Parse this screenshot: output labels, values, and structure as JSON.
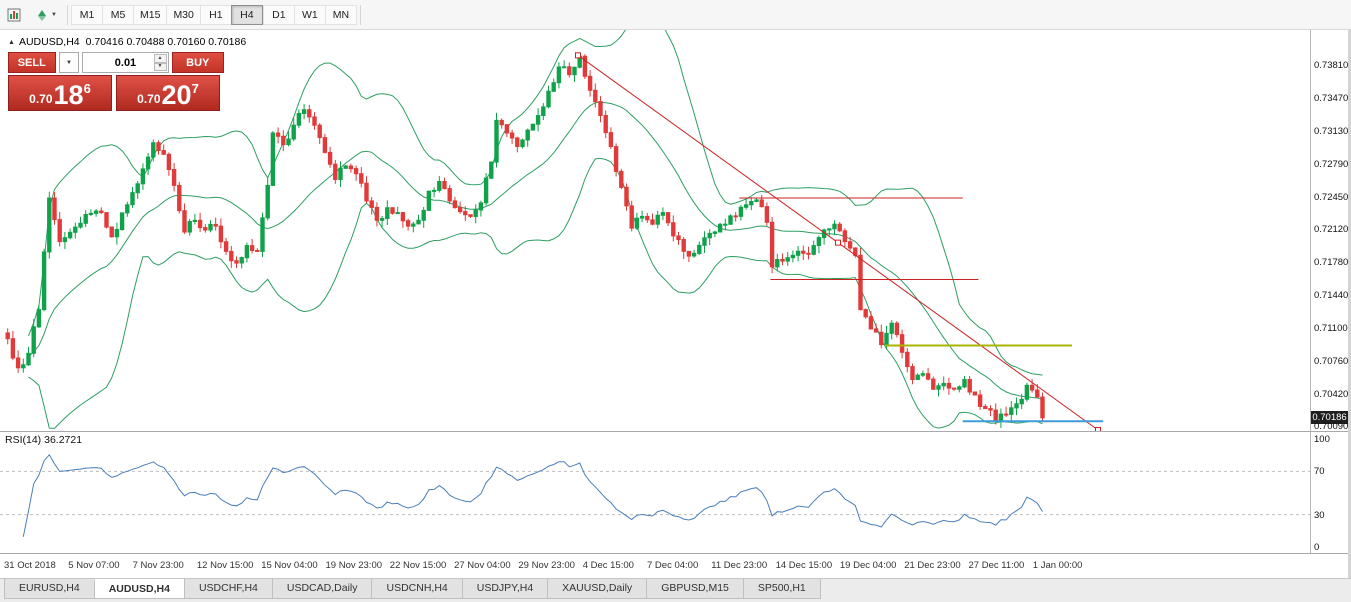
{
  "icons": {
    "panel_toggle": "▲",
    "caret_down": "▼",
    "spin_up": "▲",
    "spin_down": "▼"
  },
  "colors": {
    "candle_up": "#0fa24a",
    "candle_down": "#e03a3a",
    "bollinger": "#2f9e62",
    "rsi_line": "#4a7ebb",
    "rsi_level": "#bdbdbd",
    "trendline": "#cc2222",
    "hline_red": "#cc2222",
    "hline_olive": "#a8b400",
    "hline_blue": "#3f9bd8",
    "price_badge_bg": "#1f1f1f"
  },
  "toolbar": {
    "timeframes": [
      "M1",
      "M5",
      "M15",
      "M30",
      "H1",
      "H4",
      "D1",
      "W1",
      "MN"
    ],
    "selected_timeframe": "H4"
  },
  "chart": {
    "title_symbol": "AUDUSD,H4",
    "ohlc": "0.70416 0.70488 0.70160 0.70186",
    "trade_panel": {
      "sell_label": "SELL",
      "buy_label": "BUY",
      "lot": "0.01",
      "sell_price_prefix": "0.70",
      "sell_price_big": "18",
      "sell_price_sup": "6",
      "buy_price_prefix": "0.70",
      "buy_price_big": "20",
      "buy_price_sup": "7"
    },
    "price_axis": {
      "labels": [
        {
          "text": "0.73810",
          "value": 0.7381
        },
        {
          "text": "0.73470",
          "value": 0.7347
        },
        {
          "text": "0.73130",
          "value": 0.7313
        },
        {
          "text": "0.72790",
          "value": 0.7279
        },
        {
          "text": "0.72450",
          "value": 0.7245
        },
        {
          "text": "0.72120",
          "value": 0.7212
        },
        {
          "text": "0.71780",
          "value": 0.7178
        },
        {
          "text": "0.71440",
          "value": 0.7144
        },
        {
          "text": "0.71100",
          "value": 0.711
        },
        {
          "text": "0.70760",
          "value": 0.7076
        },
        {
          "text": "0.70420",
          "value": 0.7042
        },
        {
          "text": "0.70090",
          "value": 0.7009
        }
      ],
      "current_price": "0.70186"
    }
  },
  "rsi": {
    "label": "RSI(14)",
    "value": "36.2721",
    "axis_labels": [
      {
        "text": "100",
        "value": 100
      },
      {
        "text": "70",
        "value": 70
      },
      {
        "text": "30",
        "value": 30
      },
      {
        "text": "0",
        "value": 0
      }
    ]
  },
  "time_axis": [
    "31 Oct 2018",
    "5 Nov 07:00",
    "7 Nov 23:00",
    "12 Nov 15:00",
    "15 Nov 04:00",
    "19 Nov 23:00",
    "22 Nov 15:00",
    "27 Nov 04:00",
    "29 Nov 23:00",
    "4 Dec 15:00",
    "7 Dec 04:00",
    "11 Dec 23:00",
    "14 Dec 15:00",
    "19 Dec 04:00",
    "21 Dec 23:00",
    "27 Dec 11:00",
    "1 Jan 00:00"
  ],
  "tabs": [
    {
      "label": "EURUSD,H4",
      "active": false
    },
    {
      "label": "AUDUSD,H4",
      "active": true
    },
    {
      "label": "USDCHF,H4",
      "active": false
    },
    {
      "label": "USDCAD,Daily",
      "active": false
    },
    {
      "label": "USDCNH,H4",
      "active": false
    },
    {
      "label": "USDJPY,H4",
      "active": false
    },
    {
      "label": "XAUUSD,Daily",
      "active": false
    },
    {
      "label": "GBPUSD,M15",
      "active": false
    },
    {
      "label": "SP500,H1",
      "active": false
    }
  ],
  "chart_data": {
    "type": "candlestick",
    "symbol": "AUDUSD",
    "timeframe": "H4",
    "title": "AUDUSD,H4",
    "ohlc_display": {
      "open": 0.70416,
      "high": 0.70488,
      "low": 0.7016,
      "close": 0.70186
    },
    "bid": 0.70186,
    "ask": 0.70207,
    "ylim": [
      0.7007,
      0.7408
    ],
    "candle_count": 200,
    "price_path": [
      [
        0,
        0.71
      ],
      [
        2,
        0.707
      ],
      [
        4,
        0.7085
      ],
      [
        6,
        0.713
      ],
      [
        8,
        0.7245
      ],
      [
        10,
        0.72
      ],
      [
        13,
        0.7215
      ],
      [
        15,
        0.7228
      ],
      [
        18,
        0.723
      ],
      [
        20,
        0.7205
      ],
      [
        23,
        0.7238
      ],
      [
        26,
        0.7275
      ],
      [
        28,
        0.7302
      ],
      [
        30,
        0.729
      ],
      [
        32,
        0.7258
      ],
      [
        34,
        0.721
      ],
      [
        36,
        0.7222
      ],
      [
        38,
        0.7212
      ],
      [
        40,
        0.7216
      ],
      [
        42,
        0.719
      ],
      [
        44,
        0.7178
      ],
      [
        46,
        0.7196
      ],
      [
        48,
        0.719
      ],
      [
        50,
        0.7258
      ],
      [
        51,
        0.7312
      ],
      [
        53,
        0.73
      ],
      [
        55,
        0.732
      ],
      [
        57,
        0.7336
      ],
      [
        59,
        0.732
      ],
      [
        61,
        0.7292
      ],
      [
        63,
        0.7264
      ],
      [
        65,
        0.7278
      ],
      [
        67,
        0.727
      ],
      [
        69,
        0.7242
      ],
      [
        71,
        0.7222
      ],
      [
        73,
        0.7235
      ],
      [
        75,
        0.723
      ],
      [
        77,
        0.7216
      ],
      [
        79,
        0.7222
      ],
      [
        81,
        0.7252
      ],
      [
        83,
        0.7262
      ],
      [
        85,
        0.7242
      ],
      [
        87,
        0.7231
      ],
      [
        89,
        0.7226
      ],
      [
        91,
        0.724
      ],
      [
        93,
        0.7282
      ],
      [
        94,
        0.7325
      ],
      [
        96,
        0.7312
      ],
      [
        98,
        0.7298
      ],
      [
        100,
        0.7315
      ],
      [
        102,
        0.733
      ],
      [
        104,
        0.7355
      ],
      [
        106,
        0.738
      ],
      [
        108,
        0.7372
      ],
      [
        110,
        0.7391
      ],
      [
        112,
        0.7356
      ],
      [
        114,
        0.733
      ],
      [
        116,
        0.7298
      ],
      [
        118,
        0.7256
      ],
      [
        120,
        0.7214
      ],
      [
        122,
        0.7226
      ],
      [
        124,
        0.7218
      ],
      [
        126,
        0.723
      ],
      [
        128,
        0.7206
      ],
      [
        130,
        0.719
      ],
      [
        132,
        0.7188
      ],
      [
        134,
        0.7204
      ],
      [
        136,
        0.721
      ],
      [
        138,
        0.7218
      ],
      [
        140,
        0.7226
      ],
      [
        142,
        0.7238
      ],
      [
        144,
        0.7243
      ],
      [
        146,
        0.722
      ],
      [
        147,
        0.7174
      ],
      [
        149,
        0.718
      ],
      [
        151,
        0.7186
      ],
      [
        153,
        0.7188
      ],
      [
        155,
        0.7196
      ],
      [
        157,
        0.7212
      ],
      [
        159,
        0.7218
      ],
      [
        161,
        0.72
      ],
      [
        163,
        0.7186
      ],
      [
        164,
        0.713
      ],
      [
        166,
        0.711
      ],
      [
        168,
        0.7094
      ],
      [
        170,
        0.7116
      ],
      [
        172,
        0.7086
      ],
      [
        174,
        0.7058
      ],
      [
        176,
        0.7064
      ],
      [
        178,
        0.7048
      ],
      [
        180,
        0.7054
      ],
      [
        182,
        0.7048
      ],
      [
        184,
        0.7058
      ],
      [
        186,
        0.7042
      ],
      [
        188,
        0.7028
      ],
      [
        190,
        0.7016
      ],
      [
        192,
        0.7022
      ],
      [
        194,
        0.7033
      ],
      [
        196,
        0.7052
      ],
      [
        198,
        0.704
      ],
      [
        199,
        0.70186
      ]
    ],
    "indicators": {
      "bollinger": {
        "period": 20,
        "deviation": 2
      },
      "rsi": {
        "period": 14,
        "last_value": 36.2721,
        "levels": [
          70,
          30
        ]
      }
    },
    "objects": [
      {
        "type": "trendline",
        "from_i": 110,
        "from_price": 0.7392,
        "to_i": 210,
        "to_price": 0.7006,
        "selected": true
      },
      {
        "type": "hline_segment",
        "color_key": "hline_red",
        "price": 0.7245,
        "from_i": 141,
        "to_i": 184,
        "width": 1
      },
      {
        "type": "hline_segment",
        "color_key": "hline_red",
        "price": 0.7161,
        "from_i": 147,
        "to_i": 187,
        "width": 1
      },
      {
        "type": "hline_segment",
        "color_key": "hline_olive",
        "price": 0.7093,
        "from_i": 169,
        "to_i": 205,
        "width": 2
      },
      {
        "type": "hline_segment",
        "color_key": "hline_blue",
        "price": 0.7015,
        "from_i": 184,
        "to_i": 211,
        "width": 2
      }
    ]
  }
}
